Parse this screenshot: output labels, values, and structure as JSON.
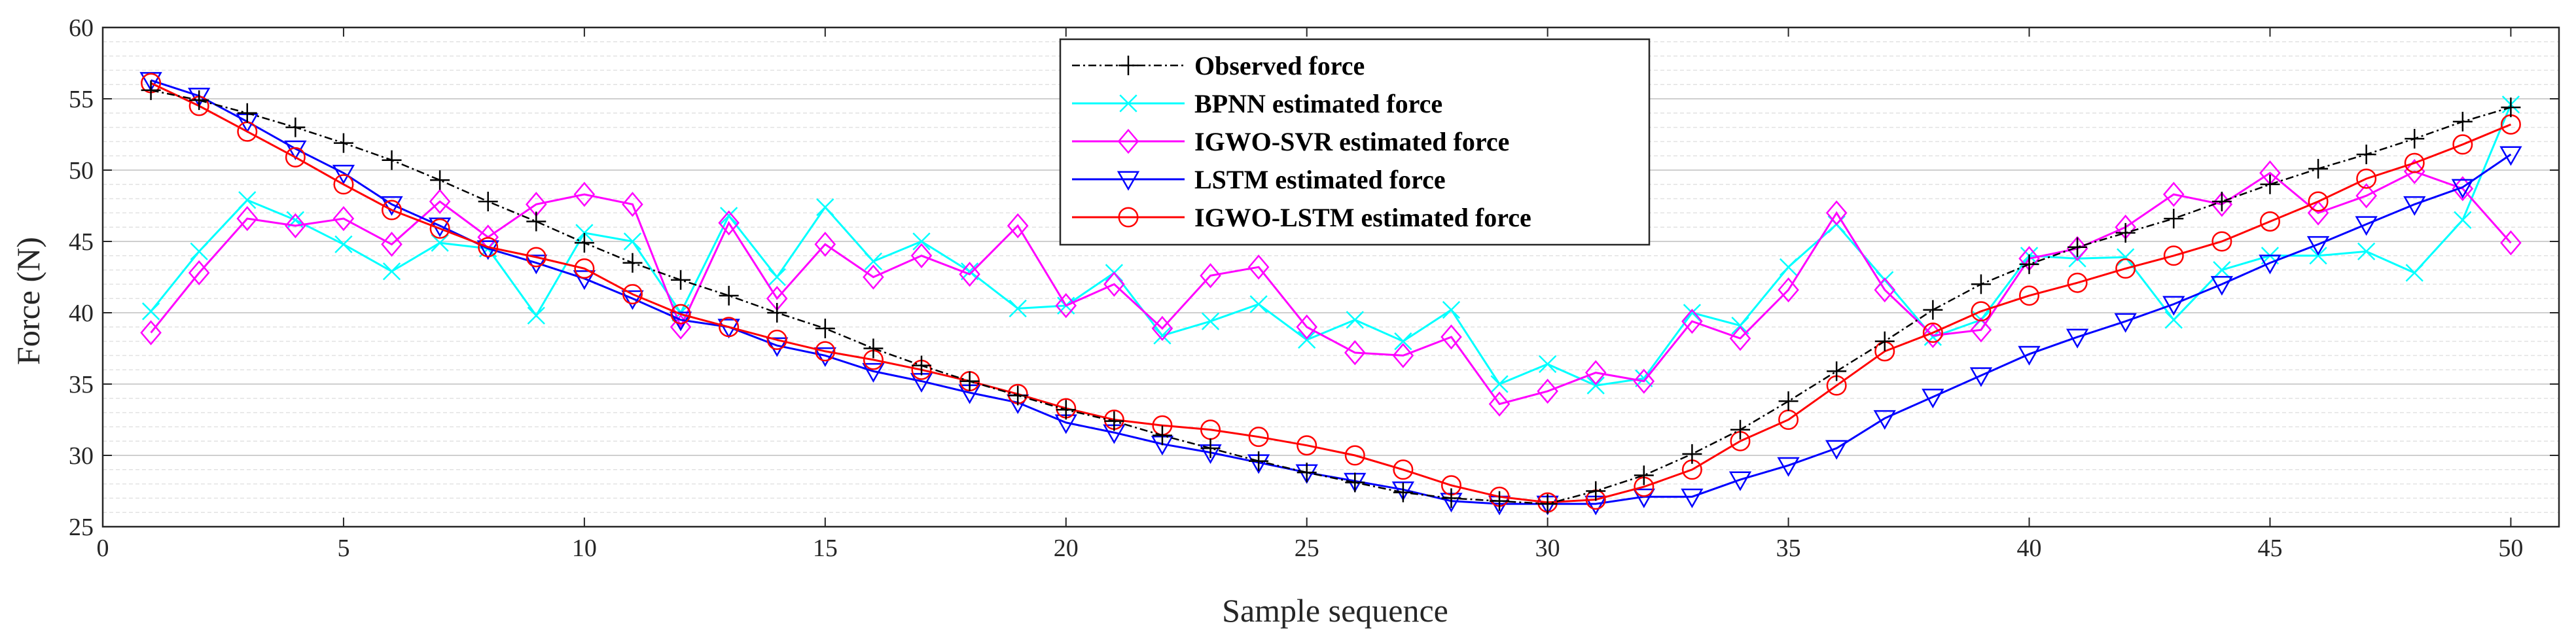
{
  "chart_data": {
    "type": "line",
    "xlabel": "Sample sequence",
    "ylabel": "Force (N)",
    "xlim": [
      0,
      51
    ],
    "ylim": [
      25,
      60
    ],
    "xticks": [
      0,
      5,
      10,
      15,
      20,
      25,
      30,
      35,
      40,
      45,
      50
    ],
    "yticks": [
      25,
      30,
      35,
      40,
      45,
      50,
      55,
      60
    ],
    "grid": "horizontal-minor",
    "legend_position": "top-center",
    "x": [
      1,
      2,
      3,
      4,
      5,
      6,
      7,
      8,
      9,
      10,
      11,
      12,
      13,
      14,
      15,
      16,
      17,
      18,
      19,
      20,
      21,
      22,
      23,
      24,
      25,
      26,
      27,
      28,
      29,
      30,
      31,
      32,
      33,
      34,
      35,
      36,
      37,
      38,
      39,
      40,
      41,
      42,
      43,
      44,
      45,
      46,
      47,
      48,
      49,
      50
    ],
    "series": [
      {
        "name": "Observed force",
        "color": "#000000",
        "marker": "plus",
        "dash": "dashdot",
        "values": [
          55.6,
          54.9,
          54.0,
          53.0,
          51.9,
          50.7,
          49.3,
          47.8,
          46.4,
          44.9,
          43.5,
          42.3,
          41.2,
          40.0,
          38.9,
          37.5,
          36.3,
          35.2,
          34.2,
          33.2,
          32.4,
          31.4,
          30.5,
          29.6,
          28.8,
          28.1,
          27.4,
          27.0,
          26.8,
          26.6,
          27.5,
          28.6,
          30.1,
          31.8,
          33.8,
          35.9,
          38.0,
          40.2,
          42.0,
          43.4,
          44.6,
          45.6,
          46.6,
          47.8,
          49.0,
          50.1,
          51.1,
          52.2,
          53.4,
          54.4
        ]
      },
      {
        "name": "BPNN estimated force",
        "color": "#00ffff",
        "marker": "x",
        "dash": "solid",
        "values": [
          40.1,
          44.3,
          47.9,
          46.5,
          44.8,
          42.9,
          44.9,
          44.5,
          39.8,
          45.6,
          45.0,
          40.0,
          46.8,
          42.5,
          47.4,
          43.6,
          45.0,
          42.9,
          40.3,
          40.5,
          42.8,
          38.4,
          39.4,
          40.6,
          38.1,
          39.5,
          38.0,
          40.2,
          35.0,
          36.4,
          34.9,
          35.4,
          40.0,
          39.1,
          43.2,
          46.2,
          42.3,
          38.3,
          39.5,
          44.0,
          43.8,
          43.9,
          39.5,
          43.0,
          44.0,
          44.0,
          44.3,
          42.8,
          46.5,
          54.6
        ]
      },
      {
        "name": "IGWO-SVR estimated force",
        "color": "#ff00ff",
        "marker": "diamond",
        "dash": "solid",
        "values": [
          38.6,
          42.8,
          46.6,
          46.1,
          46.6,
          44.8,
          47.8,
          45.3,
          47.6,
          48.3,
          47.6,
          39.0,
          46.3,
          41.0,
          44.8,
          42.5,
          44.0,
          42.7,
          46.1,
          40.5,
          42.0,
          38.9,
          42.6,
          43.2,
          39.0,
          37.2,
          37.0,
          38.3,
          33.6,
          34.5,
          35.8,
          35.2,
          39.4,
          38.2,
          41.6,
          47.0,
          41.6,
          38.4,
          38.8,
          43.8,
          44.5,
          46.0,
          48.3,
          47.6,
          49.8,
          47.0,
          48.2,
          49.9,
          48.7,
          44.9
        ]
      },
      {
        "name": "LSTM estimated force",
        "color": "#0000ff",
        "marker": "triangle-down",
        "dash": "solid",
        "values": [
          56.3,
          55.2,
          53.4,
          51.5,
          49.8,
          47.6,
          46.1,
          44.5,
          43.5,
          42.4,
          41.0,
          39.5,
          39.0,
          37.7,
          37.0,
          35.9,
          35.2,
          34.4,
          33.7,
          32.3,
          31.6,
          30.8,
          30.2,
          29.5,
          28.8,
          28.2,
          27.6,
          26.8,
          26.6,
          26.6,
          26.6,
          27.1,
          27.1,
          28.3,
          29.3,
          30.5,
          32.6,
          34.1,
          35.6,
          37.1,
          38.3,
          39.4,
          40.6,
          42.0,
          43.5,
          44.8,
          46.2,
          47.6,
          48.8,
          51.1
        ]
      },
      {
        "name": "IGWO-LSTM estimated force",
        "color": "#ff0000",
        "marker": "circle",
        "dash": "solid",
        "values": [
          56.1,
          54.5,
          52.7,
          50.9,
          49.0,
          47.2,
          45.9,
          44.6,
          43.9,
          43.1,
          41.3,
          39.9,
          39.0,
          38.1,
          37.3,
          36.7,
          36.0,
          35.2,
          34.3,
          33.3,
          32.5,
          32.1,
          31.8,
          31.3,
          30.7,
          30.0,
          29.0,
          27.9,
          27.1,
          26.7,
          26.9,
          27.8,
          29.0,
          31.0,
          32.5,
          34.9,
          37.3,
          38.6,
          40.1,
          41.2,
          42.1,
          43.1,
          44.0,
          45.0,
          46.4,
          47.8,
          49.4,
          50.5,
          51.8,
          53.2
        ]
      }
    ]
  }
}
